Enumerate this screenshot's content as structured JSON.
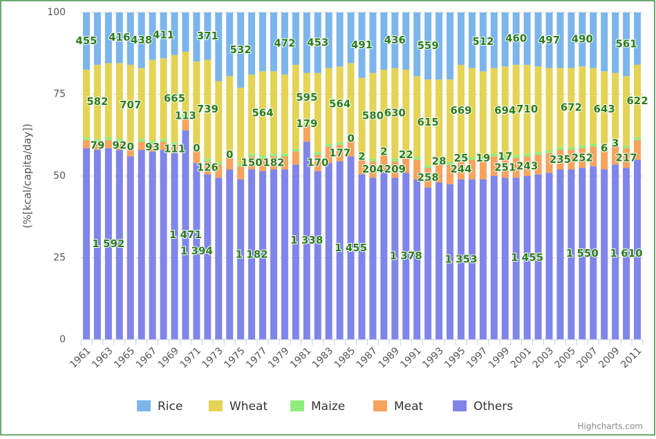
{
  "chart_data": {
    "type": "stacked_bar",
    "y_axis_label": "(%[kcal/capita/day])",
    "credits": "Highcharts.com",
    "categories": [
      "1961",
      null,
      "1963",
      null,
      "1965",
      null,
      "1967",
      null,
      "1969",
      null,
      "1971",
      null,
      "1973",
      null,
      "1975",
      null,
      "1977",
      null,
      "1979",
      null,
      "1981",
      null,
      "1983",
      null,
      "1985",
      null,
      "1987",
      null,
      "1989",
      null,
      "1991",
      null,
      "1993",
      null,
      "1995",
      null,
      "1997",
      null,
      "1999",
      null,
      "2001",
      null,
      "2003",
      null,
      "2005",
      null,
      "2007",
      null,
      "2009",
      null,
      "2011"
    ],
    "ylim": [
      0,
      100
    ],
    "yticks": [
      0,
      25,
      50,
      75,
      100
    ],
    "grid": true,
    "data_label_color": "#2a7d1a",
    "series": [
      {
        "name": "Rice",
        "color": "#7cb5ec",
        "values": [
          17.5,
          16,
          15.5,
          15.5,
          16,
          17,
          14.5,
          14,
          13,
          12,
          15,
          14.5,
          21,
          19.5,
          23,
          19,
          18,
          18,
          19,
          16,
          18.5,
          18.5,
          17,
          16.5,
          15.5,
          20,
          18.5,
          17.5,
          17,
          17.5,
          19.5,
          20.5,
          20.5,
          20.5,
          16,
          17,
          18,
          17,
          16.5,
          16,
          16,
          16.5,
          17,
          17,
          17,
          16.5,
          17,
          18,
          18.5,
          19.5,
          16
        ],
        "data_labels": [
          "455",
          null,
          null,
          "416",
          null,
          "438",
          null,
          "411",
          null,
          null,
          null,
          "371",
          null,
          null,
          "532",
          null,
          null,
          null,
          "472",
          null,
          null,
          "453",
          null,
          null,
          null,
          "491",
          null,
          null,
          "436",
          null,
          null,
          "559",
          null,
          null,
          null,
          null,
          "512",
          null,
          null,
          "460",
          null,
          null,
          "497",
          null,
          null,
          "490",
          null,
          null,
          null,
          "561",
          null
        ]
      },
      {
        "name": "Wheat",
        "color": "#e4d354",
        "values": [
          20.7,
          22.7,
          22.7,
          23.2,
          24.7,
          21.7,
          24.7,
          24.7,
          26.7,
          19.2,
          26.2,
          30.2,
          24.7,
          23.7,
          23.2,
          24.2,
          25.7,
          25.2,
          24.2,
          25.7,
          15.2,
          24.2,
          23.2,
          23.2,
          22.7,
          23.7,
          26.2,
          24.7,
          27.7,
          25.7,
          24.7,
          26.2,
          24.7,
          25.2,
          28.2,
          27.2,
          26.2,
          26.2,
          27.2,
          27.7,
          27.2,
          26.2,
          25.2,
          24.2,
          24.2,
          24.2,
          23.2,
          23.2,
          21.2,
          21.2,
          22.2
        ],
        "data_labels": [
          null,
          "582",
          null,
          null,
          "707",
          null,
          null,
          null,
          "665",
          null,
          null,
          "739",
          null,
          null,
          null,
          null,
          "564",
          null,
          null,
          null,
          "595",
          null,
          null,
          "564",
          null,
          null,
          "580",
          null,
          "630",
          null,
          null,
          "615",
          null,
          null,
          "669",
          null,
          null,
          null,
          "694",
          null,
          "710",
          null,
          null,
          null,
          "672",
          null,
          null,
          "643",
          null,
          null,
          "622"
        ]
      },
      {
        "name": "Maize",
        "color": "#90ed7d",
        "values": [
          0.8,
          0.8,
          0.8,
          0.8,
          0.8,
          0.8,
          0.8,
          0.8,
          0.8,
          0.8,
          0.8,
          0.8,
          0.8,
          0.8,
          0.8,
          0.8,
          0.8,
          0.8,
          0.8,
          0.8,
          0.8,
          0.8,
          0.8,
          0.8,
          0.8,
          0.8,
          0.8,
          0.8,
          0.8,
          0.8,
          0.8,
          0.8,
          0.8,
          0.8,
          0.8,
          0.8,
          0.8,
          0.8,
          0.8,
          0.8,
          0.8,
          0.8,
          0.8,
          0.8,
          0.8,
          0.8,
          0.8,
          0.8,
          0.8,
          0.8,
          0.8
        ],
        "data_labels": [
          null,
          null,
          null,
          null,
          "0",
          null,
          null,
          null,
          null,
          "113",
          "0",
          null,
          null,
          "0",
          null,
          null,
          null,
          null,
          null,
          null,
          "179",
          null,
          null,
          null,
          "0",
          "2",
          null,
          "2",
          null,
          "22",
          null,
          null,
          "28",
          null,
          "25",
          null,
          "19",
          null,
          "17",
          null,
          null,
          null,
          null,
          null,
          null,
          null,
          null,
          "6",
          "3",
          null,
          null
        ]
      },
      {
        "name": "Meat",
        "color": "#f7a35c",
        "values": [
          2.5,
          2.5,
          2.5,
          2.5,
          2.5,
          2.5,
          2.5,
          2.5,
          2.5,
          4,
          4,
          4,
          4,
          4,
          4,
          4,
          4,
          4,
          4,
          4,
          5,
          5,
          5,
          5,
          5,
          5,
          5,
          5,
          5,
          5,
          6,
          6,
          6,
          6,
          6,
          6,
          6,
          6,
          6,
          6,
          6,
          6,
          6,
          6,
          6,
          6,
          6,
          6,
          6,
          6,
          6
        ],
        "data_labels": [
          null,
          "79",
          null,
          "92",
          null,
          null,
          "93",
          null,
          "111",
          null,
          null,
          "126",
          null,
          null,
          null,
          "150",
          null,
          "182",
          null,
          null,
          null,
          "170",
          null,
          "177",
          null,
          null,
          "204",
          null,
          "209",
          null,
          null,
          "258",
          null,
          null,
          "244",
          null,
          null,
          null,
          "251",
          null,
          "243",
          null,
          null,
          "235",
          null,
          "252",
          null,
          null,
          null,
          "217",
          null
        ]
      },
      {
        "name": "Others",
        "color": "#8085e9",
        "values": [
          58.5,
          58,
          58.5,
          58,
          56,
          58,
          57.5,
          58,
          57,
          64,
          54,
          50.5,
          49.5,
          52,
          49,
          52,
          51.5,
          52,
          52,
          53.5,
          60.5,
          51.5,
          54,
          54.5,
          56,
          50.5,
          49.5,
          52,
          49.5,
          51,
          49,
          46.5,
          48,
          47.5,
          49,
          49,
          49,
          50,
          49.5,
          49.5,
          50,
          50.5,
          51,
          52,
          52,
          52.5,
          53,
          52,
          53.5,
          52.5,
          55
        ],
        "data_labels": [
          null,
          null,
          "1 592",
          null,
          null,
          null,
          null,
          null,
          null,
          "1 471",
          "1 394",
          null,
          null,
          null,
          null,
          "1 182",
          null,
          null,
          null,
          null,
          "1 338",
          null,
          null,
          null,
          "1 455",
          null,
          null,
          null,
          null,
          "1 378",
          null,
          null,
          null,
          null,
          "1 353",
          null,
          null,
          null,
          null,
          null,
          "1 455",
          null,
          null,
          null,
          null,
          "1 550",
          null,
          null,
          null,
          "1 610",
          null
        ]
      }
    ]
  }
}
